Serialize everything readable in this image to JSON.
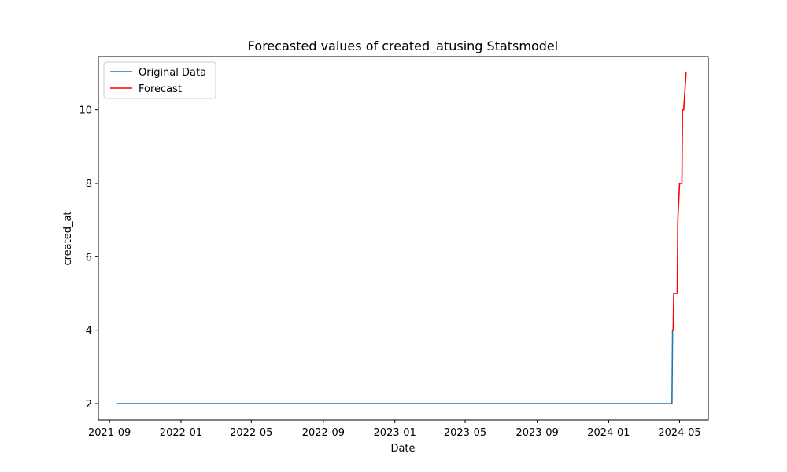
{
  "chart_data": {
    "type": "line",
    "title": "Forecasted values of created_atusing Statsmodel",
    "xlabel": "Date",
    "ylabel": "created_at",
    "x_ticks": [
      "2021-09",
      "2022-01",
      "2022-05",
      "2022-09",
      "2023-01",
      "2023-05",
      "2023-09",
      "2024-01",
      "2024-05"
    ],
    "y_ticks": [
      2,
      4,
      6,
      8,
      10
    ],
    "xlim": [
      "2021-08-13",
      "2024-06-19"
    ],
    "ylim": [
      1.55,
      11.45
    ],
    "grid": false,
    "legend_position": "top-left",
    "series": [
      {
        "name": "Original Data",
        "color": "#1f77b4",
        "step": true,
        "x": [
          "2021-09-15",
          "2024-04-18",
          "2024-04-19"
        ],
        "y": [
          2,
          2,
          4
        ]
      },
      {
        "name": "Forecast",
        "color": "#ff0000",
        "step": true,
        "x": [
          "2024-04-19",
          "2024-04-20",
          "2024-04-21",
          "2024-04-27",
          "2024-04-28",
          "2024-05-01",
          "2024-05-05",
          "2024-05-06",
          "2024-05-08",
          "2024-05-12"
        ],
        "y": [
          4,
          4,
          5,
          5,
          7,
          8,
          8,
          10,
          10,
          11
        ]
      }
    ]
  }
}
